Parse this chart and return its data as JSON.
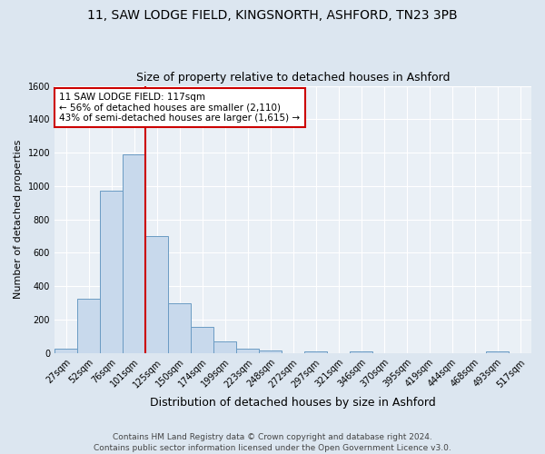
{
  "title1": "11, SAW LODGE FIELD, KINGSNORTH, ASHFORD, TN23 3PB",
  "title2": "Size of property relative to detached houses in Ashford",
  "xlabel": "Distribution of detached houses by size in Ashford",
  "ylabel": "Number of detached properties",
  "bar_labels": [
    "27sqm",
    "52sqm",
    "76sqm",
    "101sqm",
    "125sqm",
    "150sqm",
    "174sqm",
    "199sqm",
    "223sqm",
    "248sqm",
    "272sqm",
    "297sqm",
    "321sqm",
    "346sqm",
    "370sqm",
    "395sqm",
    "419sqm",
    "444sqm",
    "468sqm",
    "493sqm",
    "517sqm"
  ],
  "bar_values": [
    25,
    325,
    970,
    1190,
    700,
    300,
    155,
    70,
    25,
    15,
    0,
    10,
    0,
    10,
    0,
    0,
    0,
    0,
    0,
    10,
    0
  ],
  "bar_color": "#c8d9ec",
  "bar_edge_color": "#6a9bc3",
  "vline_color": "#cc0000",
  "annotation_text": "11 SAW LODGE FIELD: 117sqm\n← 56% of detached houses are smaller (2,110)\n43% of semi-detached houses are larger (1,615) →",
  "annotation_box_color": "#ffffff",
  "annotation_box_edge": "#cc0000",
  "ylim": [
    0,
    1600
  ],
  "yticks": [
    0,
    200,
    400,
    600,
    800,
    1000,
    1200,
    1400,
    1600
  ],
  "bg_color": "#dce6f0",
  "plot_bg_color": "#eaf0f6",
  "footer": "Contains HM Land Registry data © Crown copyright and database right 2024.\nContains public sector information licensed under the Open Government Licence v3.0.",
  "title1_fontsize": 10,
  "title2_fontsize": 9,
  "xlabel_fontsize": 9,
  "ylabel_fontsize": 8,
  "tick_fontsize": 7,
  "annotation_fontsize": 7.5,
  "footer_fontsize": 6.5
}
